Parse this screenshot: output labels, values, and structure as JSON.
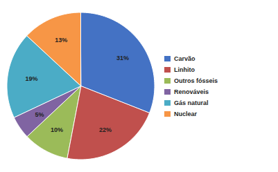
{
  "chart_data": {
    "type": "pie",
    "categories": [
      "Carvão",
      "Linhito",
      "Outros fósseis",
      "Renováveis",
      "Gás natural",
      "Nuclear"
    ],
    "values": [
      31,
      22,
      10,
      5,
      19,
      13
    ],
    "value_labels": [
      "31%",
      "22%",
      "10%",
      "5%",
      "19%",
      "13%"
    ],
    "colors": [
      "#4472C4",
      "#C0504D",
      "#9BBB59",
      "#8064A2",
      "#4BACC6",
      "#F79646"
    ],
    "data_labels": true,
    "legend": "right"
  }
}
